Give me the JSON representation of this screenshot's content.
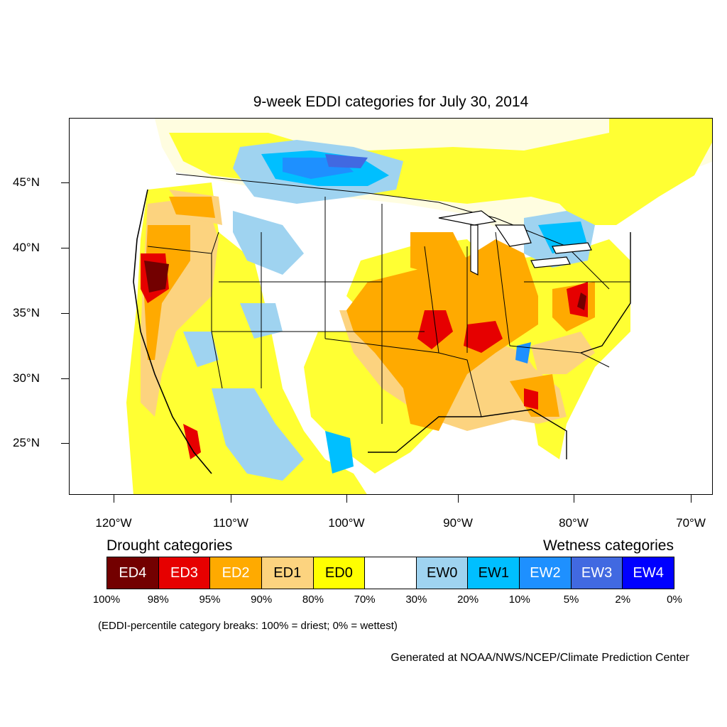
{
  "title": "9-week EDDI categories for July 30, 2014",
  "lat_labels": [
    "45°N",
    "40°N",
    "35°N",
    "30°N",
    "25°N"
  ],
  "lon_labels": [
    "120°W",
    "110°W",
    "100°W",
    "90°W",
    "80°W",
    "70°W"
  ],
  "legend": {
    "drought_heading": "Drought categories",
    "wetness_heading": "Wetness categories",
    "categories": [
      {
        "label": "ED4",
        "color": "#730000",
        "text_color": "#ffffff"
      },
      {
        "label": "ED3",
        "color": "#e60000",
        "text_color": "#ffffff"
      },
      {
        "label": "ED2",
        "color": "#ffaa00",
        "text_color": "#ffffff"
      },
      {
        "label": "ED1",
        "color": "#fcd37f",
        "text_color": "#000000"
      },
      {
        "label": "ED0",
        "color": "#ffff00",
        "text_color": "#000000"
      },
      {
        "label": "",
        "color": "#ffffff",
        "text_color": "#000000"
      },
      {
        "label": "EW0",
        "color": "#9fd3f0",
        "text_color": "#000000"
      },
      {
        "label": "EW1",
        "color": "#00bfff",
        "text_color": "#000000"
      },
      {
        "label": "EW2",
        "color": "#1e90ff",
        "text_color": "#ffffff"
      },
      {
        "label": "EW3",
        "color": "#4169e1",
        "text_color": "#ffffff"
      },
      {
        "label": "EW4",
        "color": "#0000ff",
        "text_color": "#ffffff"
      }
    ],
    "percentiles": [
      "100%",
      "98%",
      "95%",
      "90%",
      "80%",
      "70%",
      "30%",
      "20%",
      "10%",
      "5%",
      "2%",
      "0%"
    ]
  },
  "note": "(EDDI-percentile category breaks: 100% = driest; 0% = wettest)",
  "credit": "Generated at NOAA/NWS/NCEP/Climate Prediction Center"
}
